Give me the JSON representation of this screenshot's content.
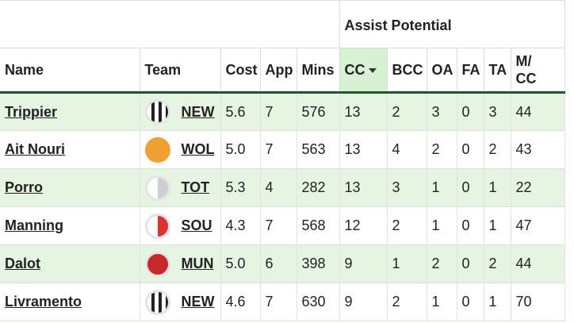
{
  "table": {
    "group_label": "Assist Potential",
    "headers": {
      "name": "Name",
      "team": "Team",
      "cost": "Cost",
      "app": "App",
      "mins": "Mins",
      "cc": "CC",
      "bcc": "BCC",
      "oa": "OA",
      "fa": "FA",
      "ta": "TA",
      "mcc_line1": "M/",
      "mcc_line2": "CC"
    },
    "sorted_column": "CC",
    "rows": [
      {
        "name": "Trippier",
        "team": "NEW",
        "cost": "5.6",
        "app": "7",
        "mins": "576",
        "cc": "13",
        "bcc": "2",
        "oa": "3",
        "fa": "0",
        "ta": "3",
        "mcc": "44"
      },
      {
        "name": "Ait Nouri",
        "team": "WOL",
        "cost": "5.0",
        "app": "7",
        "mins": "563",
        "cc": "13",
        "bcc": "4",
        "oa": "2",
        "fa": "0",
        "ta": "2",
        "mcc": "43"
      },
      {
        "name": "Porro",
        "team": "TOT",
        "cost": "5.3",
        "app": "4",
        "mins": "282",
        "cc": "13",
        "bcc": "3",
        "oa": "1",
        "fa": "0",
        "ta": "1",
        "mcc": "22"
      },
      {
        "name": "Manning",
        "team": "SOU",
        "cost": "4.3",
        "app": "7",
        "mins": "568",
        "cc": "12",
        "bcc": "2",
        "oa": "1",
        "fa": "0",
        "ta": "1",
        "mcc": "47"
      },
      {
        "name": "Dalot",
        "team": "MUN",
        "cost": "5.0",
        "app": "6",
        "mins": "398",
        "cc": "9",
        "bcc": "1",
        "oa": "2",
        "fa": "0",
        "ta": "2",
        "mcc": "44"
      },
      {
        "name": "Livramento",
        "team": "NEW",
        "cost": "4.6",
        "app": "7",
        "mins": "630",
        "cc": "9",
        "bcc": "2",
        "oa": "1",
        "fa": "0",
        "ta": "1",
        "mcc": "70"
      }
    ]
  },
  "badges": [
    "newcastle-badge-icon",
    "wolves-badge-icon",
    "tottenham-badge-icon",
    "southampton-badge-icon",
    "man-united-badge-icon",
    "newcastle-badge-icon"
  ],
  "colors": {
    "header_rule": "#1c5a23",
    "alt_row": "#e6f4e2",
    "sorted_header": "#d7f2d3"
  }
}
